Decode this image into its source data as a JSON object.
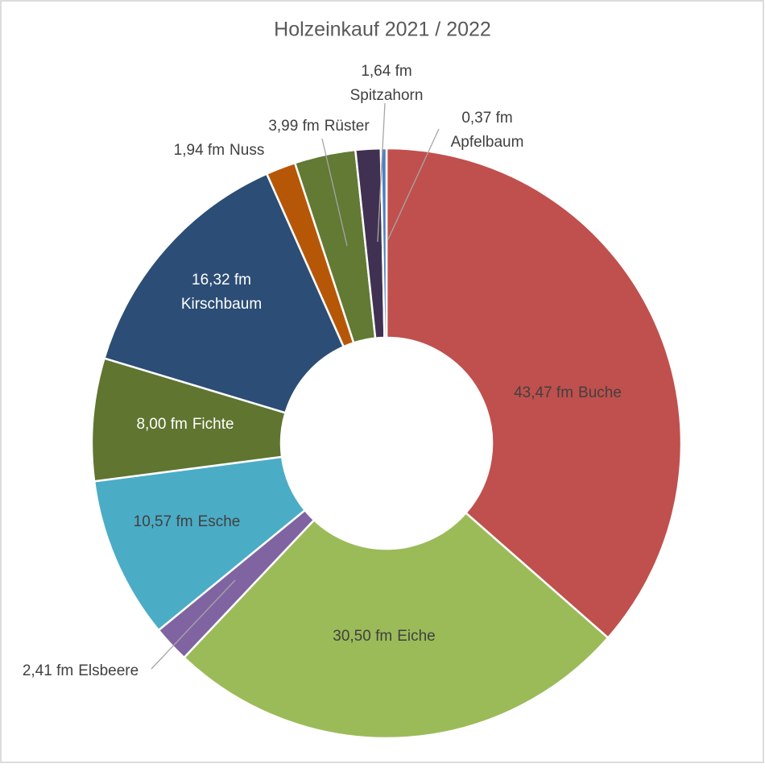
{
  "chart_data": {
    "type": "donut",
    "title": "Holzeinkauf 2021 / 2022",
    "categories": [
      "Buche",
      "Eiche",
      "Elsbeere",
      "Esche",
      "Fichte",
      "Kirschbaum",
      "Nuss",
      "Rüster",
      "Spitzahorn",
      "Apfelbaum"
    ],
    "values": [
      43.47,
      30.5,
      2.41,
      10.57,
      8.0,
      16.32,
      1.94,
      3.99,
      1.64,
      0.37
    ],
    "value_labels": [
      "43,47  fm",
      "30,50  fm",
      "2,41  fm",
      "10,57  fm",
      "8,00  fm",
      "16,32  fm",
      "1,94  fm",
      "3,99  fm",
      "1,64  fm",
      "0,37  fm"
    ],
    "colors": [
      "#c0504d",
      "#9bbb59",
      "#8064a2",
      "#4bacc6",
      "#5f7530",
      "#2c4d75",
      "#b65708",
      "#627a34",
      "#403152",
      "#4f81bd"
    ]
  }
}
